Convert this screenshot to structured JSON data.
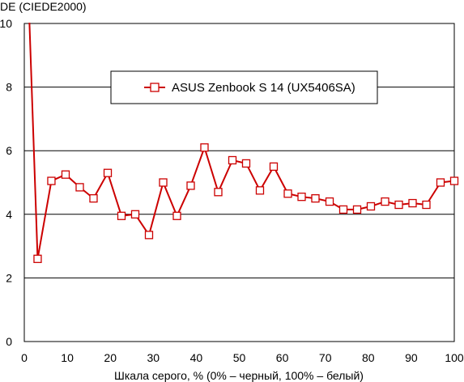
{
  "chart_data": {
    "type": "line",
    "title": "",
    "ylabel": "DE (CIEDE2000)",
    "xlabel": "Шкала серого, % (0% – черный, 100% – белый)",
    "xlim": [
      0,
      100
    ],
    "ylim": [
      0,
      10
    ],
    "xticks": [
      0,
      10,
      20,
      30,
      40,
      50,
      60,
      70,
      80,
      90,
      100
    ],
    "yticks": [
      0,
      2,
      4,
      6,
      8,
      10
    ],
    "grid": "horizontal",
    "legend_position": "top-center",
    "series": [
      {
        "name": "ASUS Zenbook S 14 (UX5406SA)",
        "color": "#cc0000",
        "marker": "open-square",
        "x": [
          1.2,
          3.1,
          6.3,
          9.6,
          12.9,
          16.1,
          19.4,
          22.6,
          25.8,
          29.0,
          32.3,
          35.5,
          38.7,
          41.9,
          45.1,
          48.4,
          51.6,
          54.8,
          58.0,
          61.3,
          64.5,
          67.7,
          71.0,
          74.2,
          77.4,
          80.6,
          83.9,
          87.1,
          90.3,
          93.5,
          96.8,
          100.0
        ],
        "y": [
          10.1,
          2.6,
          5.05,
          5.25,
          4.85,
          4.5,
          5.3,
          3.95,
          4.0,
          3.35,
          5.0,
          3.95,
          4.9,
          6.1,
          4.7,
          5.7,
          5.6,
          4.75,
          5.5,
          4.65,
          4.55,
          4.5,
          4.4,
          4.15,
          4.15,
          4.25,
          4.4,
          4.3,
          4.35,
          4.3,
          5.0,
          5.05
        ]
      }
    ]
  }
}
